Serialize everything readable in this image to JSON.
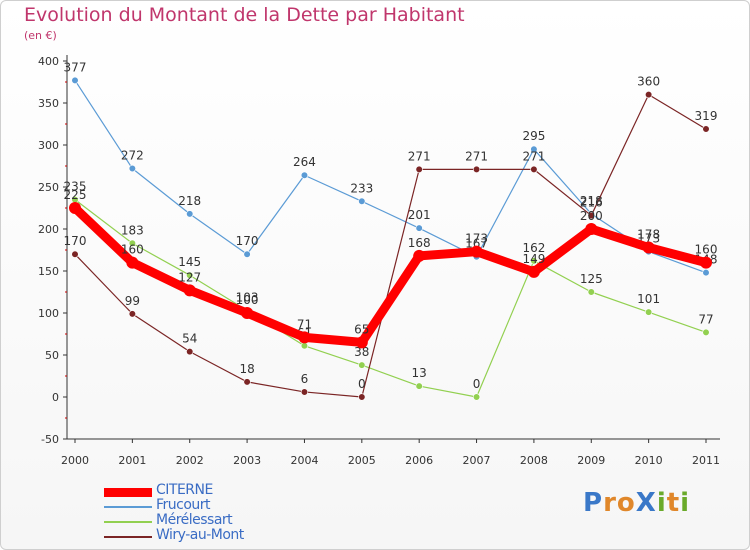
{
  "title": "Evolution du Montant de la Dette par Habitant",
  "subtitle": "(en €)",
  "logo": {
    "text": "ProXiti",
    "letters": [
      "P",
      "r",
      "o",
      "X",
      "i",
      "t",
      "i"
    ],
    "colors": [
      "#3a78c8",
      "#e0872a",
      "#e0872a",
      "#3a78c8",
      "#6aaa2a",
      "#e0872a",
      "#6aaa2a"
    ]
  },
  "chart_data": {
    "type": "line",
    "x": [
      "2000",
      "2001",
      "2002",
      "2003",
      "2004",
      "2005",
      "2006",
      "2007",
      "2008",
      "2009",
      "2010",
      "2011"
    ],
    "ylim": [
      -50,
      400
    ],
    "yticks": [
      "-50",
      "0",
      "50",
      "100",
      "150",
      "200",
      "250",
      "300",
      "350",
      "400"
    ],
    "grid": false,
    "legend": "bottom-left",
    "series": [
      {
        "name": "Frucourt",
        "color": "#5b9bd5",
        "values": [
          377,
          272,
          218,
          170,
          264,
          233,
          201,
          167,
          295,
          218,
          173,
          148
        ],
        "labels": [
          "377",
          "272",
          "218",
          "170",
          "264",
          "233",
          "201",
          "167",
          "295",
          "218",
          "173",
          "148"
        ]
      },
      {
        "name": "Mérélessart",
        "color": "#92d050",
        "values": [
          235,
          183,
          145,
          103,
          61,
          38,
          13,
          0,
          162,
          125,
          101,
          77
        ],
        "labels": [
          "235",
          "183",
          "145",
          "103",
          "61",
          "38",
          "13",
          "0",
          "162",
          "125",
          "101",
          "77"
        ]
      },
      {
        "name": "Wiry-au-Mont",
        "color": "#7b2525",
        "values": [
          170,
          99,
          54,
          18,
          6,
          0,
          271,
          271,
          271,
          216,
          360,
          319
        ],
        "labels": [
          "170",
          "99",
          "54",
          "18",
          "6",
          "0",
          "271",
          "271",
          "271",
          "216",
          "360",
          "319"
        ]
      },
      {
        "name": "CITERNE",
        "color": "#ff0000",
        "values": [
          225,
          160,
          127,
          100,
          71,
          65,
          168,
          173,
          149,
          200,
          178,
          160
        ],
        "labels": [
          "225",
          "160",
          "127",
          "100",
          "71",
          "65",
          "168",
          "173",
          "149",
          "200",
          "178",
          "160"
        ]
      }
    ],
    "legend_order": [
      "CITERNE",
      "Frucourt",
      "Mérélessart",
      "Wiry-au-Mont"
    ]
  }
}
